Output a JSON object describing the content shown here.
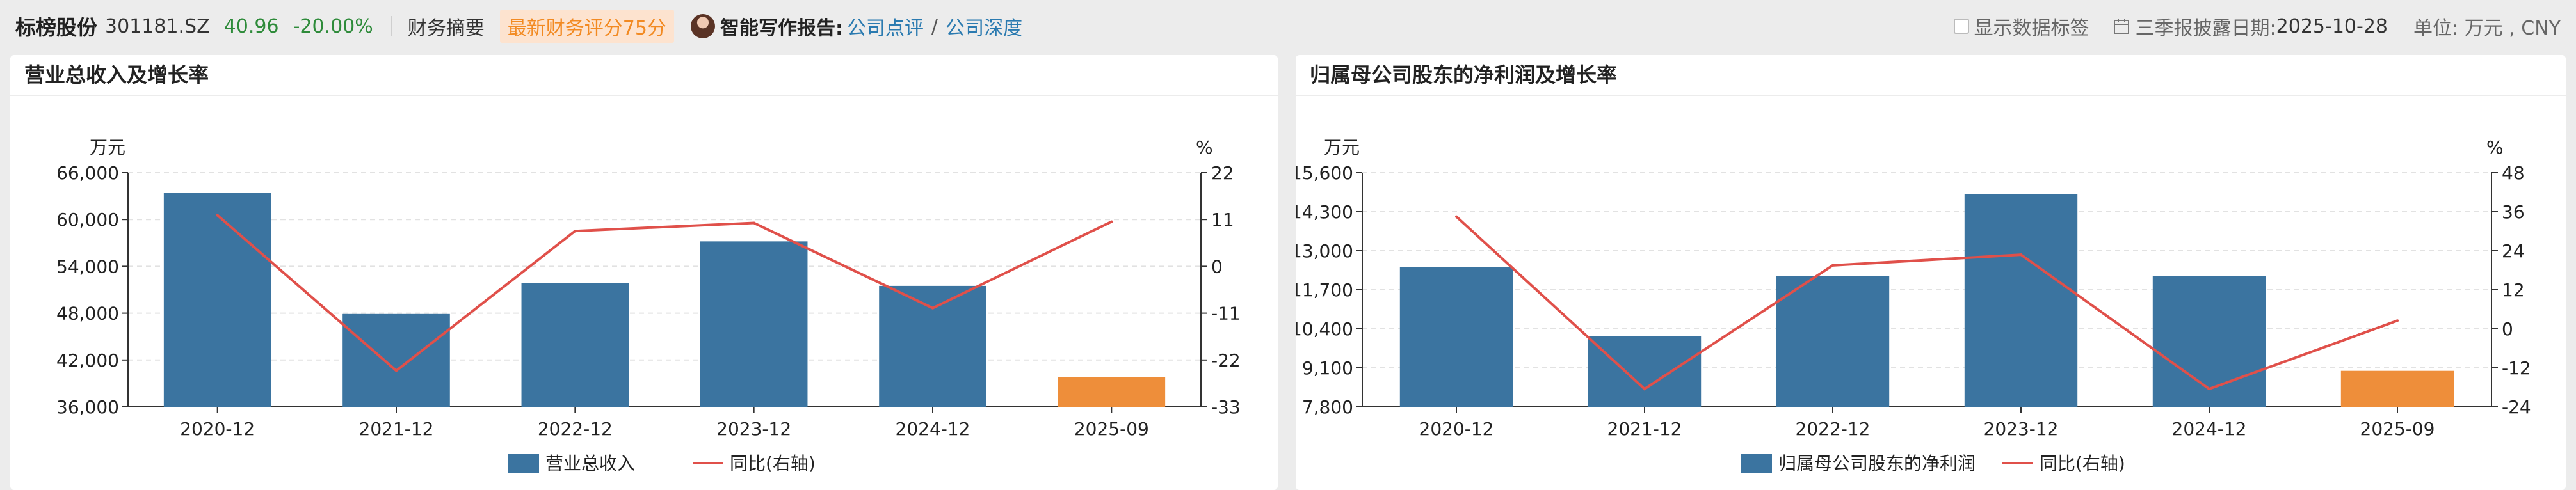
{
  "header": {
    "stock_name": "标榜股份",
    "stock_code": "301181.SZ",
    "price": "40.96",
    "change": "-20.00%",
    "summary_link": "财务摘要",
    "score_badge": "最新财务评分75分",
    "ai_report_label": "智能写作报告:",
    "ai_link_1": "公司点评",
    "slash": "/",
    "ai_link_2": "公司深度",
    "show_labels": "显示数据标签",
    "disclosure_label": "三季报披露日期:",
    "disclosure_date": "2025-10-28",
    "unit": "单位: 万元 , CNY"
  },
  "colors": {
    "bar": "#3b74a0",
    "bar_latest": "#ee8e3a",
    "line": "#e0504a",
    "positive": "#2e8b3a",
    "accent": "#f28a22",
    "link": "#2a7ab0"
  },
  "chart_data": [
    {
      "type": "bar",
      "title": "营业总收入及增长率",
      "categories": [
        "2020-12",
        "2021-12",
        "2022-12",
        "2023-12",
        "2024-12",
        "2025-09"
      ],
      "y_unit": "万元",
      "y2_unit": "%",
      "ylim": [
        36000,
        66000
      ],
      "yticks": [
        "36,000",
        "42,000",
        "48,000",
        "54,000",
        "60,000",
        "66,000"
      ],
      "y2lim": [
        -33,
        22
      ],
      "y2ticks": [
        "-33",
        "-22",
        "-11",
        "0",
        "11",
        "22"
      ],
      "grid": true,
      "legend_position": "bottom",
      "series": [
        {
          "name": "营业总收入",
          "kind": "bar",
          "axis": "left",
          "values": [
            63400,
            47900,
            51900,
            57200,
            51500,
            39800
          ]
        },
        {
          "name": "同比(右轴)",
          "kind": "line",
          "axis": "right",
          "values": [
            12,
            -24.5,
            8.3,
            10.2,
            -9.8,
            10.5
          ]
        }
      ]
    },
    {
      "type": "bar",
      "title": "归属母公司股东的净利润及增长率",
      "categories": [
        "2020-12",
        "2021-12",
        "2022-12",
        "2023-12",
        "2024-12",
        "2025-09"
      ],
      "y_unit": "万元",
      "y2_unit": "%",
      "ylim": [
        7800,
        15600
      ],
      "yticks": [
        "7,800",
        "9,100",
        "10,400",
        "11,700",
        "13,000",
        "14,300",
        "15,600"
      ],
      "y2lim": [
        -24,
        48
      ],
      "y2ticks": [
        "-24",
        "-12",
        "0",
        "12",
        "24",
        "36",
        "48"
      ],
      "grid": true,
      "legend_position": "bottom",
      "series": [
        {
          "name": "归属母公司股东的净利润",
          "kind": "bar",
          "axis": "left",
          "values": [
            12450,
            10150,
            12150,
            14880,
            12150,
            9000
          ]
        },
        {
          "name": "同比(右轴)",
          "kind": "line",
          "axis": "right",
          "values": [
            34.5,
            -18.5,
            19.5,
            22.8,
            -18.5,
            2.5
          ]
        }
      ]
    }
  ]
}
